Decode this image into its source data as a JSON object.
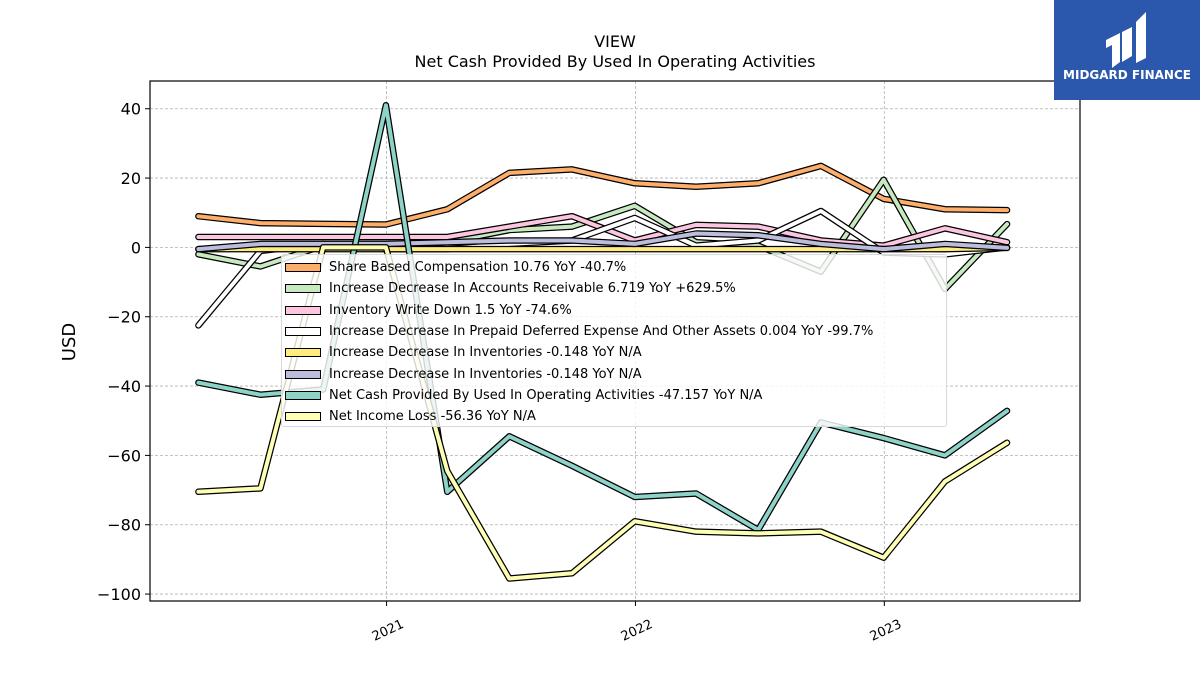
{
  "chart_data": {
    "type": "line",
    "title": "VIEW",
    "subtitle": "Net Cash Provided By Used In Operating Activities",
    "xlabel": "",
    "ylabel": "USD",
    "ylim": [
      -102,
      48
    ],
    "xlim": [
      "2020-01-20",
      "2023-10-15"
    ],
    "grid": true,
    "legend_position": "center",
    "x_ticks": [
      "2021",
      "2022",
      "2023"
    ],
    "y_ticks": [
      40,
      20,
      0,
      -20,
      -40,
      -60,
      -80,
      -100
    ],
    "y_tick_labels": [
      "40",
      "20",
      "0",
      "−20",
      "−40",
      "−60",
      "−80",
      "−100"
    ],
    "x": [
      "2020-03-31",
      "2020-06-30",
      "2020-09-30",
      "2020-12-31",
      "2021-03-31",
      "2021-06-30",
      "2021-09-30",
      "2021-12-31",
      "2022-03-31",
      "2022-06-30",
      "2022-09-30",
      "2022-12-31",
      "2023-03-31",
      "2023-06-30"
    ],
    "series": [
      {
        "name": "Share Based Compensation",
        "legend": "Share Based Compensation  10.76 YoY -40.7%",
        "color": "#fdae6b",
        "values": [
          9,
          7,
          6.8,
          6.6,
          11,
          21.5,
          22.5,
          18.5,
          17.5,
          18.5,
          23.5,
          14,
          11,
          10.76
        ]
      },
      {
        "name": "Increase Decrease In Accounts Receivable",
        "legend": "Increase Decrease In Accounts Receivable  6.719 YoY +629.5%",
        "color": "#c7e9c0",
        "values": [
          -2,
          -5.5,
          0.5,
          -0.5,
          1.5,
          5,
          6,
          12,
          1.5,
          0.5,
          -7,
          19.5,
          -12,
          6.719
        ]
      },
      {
        "name": "Inventory Write Down",
        "legend": "Inventory Write Down  1.5 YoY -74.6%",
        "color": "#fcc5e0",
        "values": [
          3,
          3,
          3,
          3,
          3,
          6,
          9,
          2,
          6.5,
          6,
          2,
          0.5,
          5.5,
          1.5
        ]
      },
      {
        "name": "Increase Decrease In Prepaid Deferred Expense And Other Assets",
        "legend": "Increase Decrease In Prepaid Deferred Expense And Other Assets  0.004 YoY -99.7%",
        "color": "#ffffff",
        "values": [
          -22.5,
          -1,
          1,
          -0.5,
          -0.5,
          1,
          2,
          8.5,
          0.5,
          2,
          10.5,
          -1.5,
          -2,
          0.004
        ]
      },
      {
        "name": "Increase Decrease In Inventories",
        "legend": "Increase Decrease In Inventories  -0.148 YoY N/A",
        "color": "#ffeb80",
        "values": [
          -0.5,
          -0.5,
          -0.5,
          -0.5,
          -0.5,
          -0.5,
          -0.5,
          -0.5,
          -0.5,
          -0.5,
          -0.5,
          -0.5,
          -0.5,
          -0.148
        ]
      },
      {
        "name": "Increase Decrease In Inventories",
        "legend": "Increase Decrease In Inventories  -0.148 YoY N/A",
        "color": "#bcbddc",
        "values": [
          -0.5,
          1,
          1,
          1,
          1.5,
          2,
          2,
          1,
          4,
          3.5,
          1,
          -0.5,
          1,
          -0.148
        ]
      },
      {
        "name": "Net Cash Provided By Used In Operating Activities",
        "legend": "Net Cash Provided By Used In Operating Activities  -47.157 YoY N/A",
        "color": "#8dd3c7",
        "values": [
          -39,
          -42.5,
          -41,
          41,
          -70.5,
          -54.5,
          -63,
          -72,
          -71,
          -81.5,
          -50.5,
          -55,
          -60,
          -47.157
        ]
      },
      {
        "name": "Net Income Loss",
        "legend": "Net Income Loss  -56.36 YoY N/A",
        "color": "#ffffb3",
        "values": [
          -70.5,
          -69.5,
          0,
          0,
          -64.5,
          -95.5,
          -94,
          -79,
          -82,
          -82.5,
          -82,
          -89.5,
          -67.5,
          -56.36
        ]
      }
    ]
  },
  "logo": {
    "text": "MIDGARD FINANCE"
  }
}
